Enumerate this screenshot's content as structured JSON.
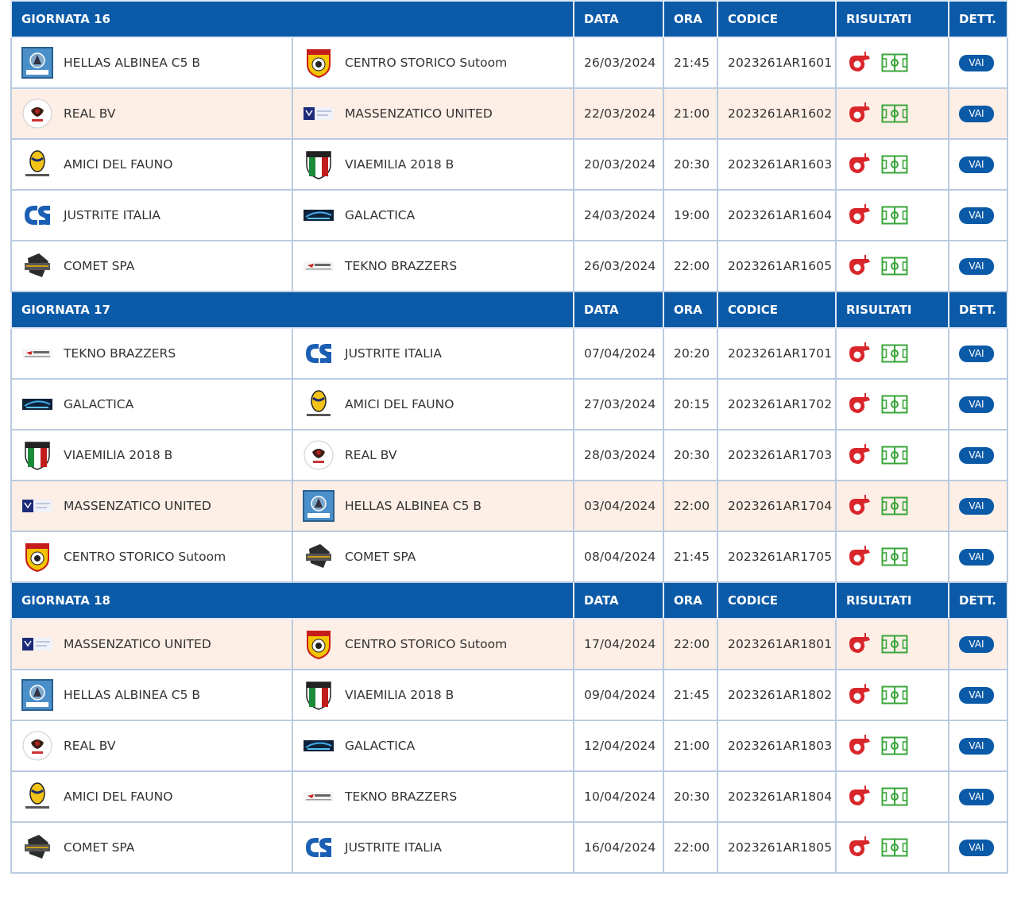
{
  "colors": {
    "header_bg": "#0b5aa8",
    "highlight_row": "#fdeee6",
    "border": "#b9cbe0",
    "field_green": "#3aa63a",
    "whistle_red": "#d8262b"
  },
  "columns": {
    "data": "DATA",
    "ora": "ORA",
    "codice": "CODICE",
    "risultati": "RISULTATI",
    "dett": "DETT."
  },
  "rounds": [
    {
      "title": "GIORNATA 16",
      "matches": [
        {
          "home": "HELLAS ALBINEA C5 B",
          "home_logo": "hellas-logo",
          "away": "CENTRO STORICO Sutoom",
          "away_logo": "centro-storico-logo",
          "date": "26/03/2024",
          "time": "21:45",
          "code": "2023261AR1601",
          "button": "VAI",
          "highlight": false
        },
        {
          "home": "REAL BV",
          "home_logo": "real-bv-logo",
          "away": "MASSENZATICO UNITED",
          "away_logo": "massenzatico-logo",
          "date": "22/03/2024",
          "time": "21:00",
          "code": "2023261AR1602",
          "button": "VAI",
          "highlight": true
        },
        {
          "home": "AMICI DEL FAUNO",
          "home_logo": "amici-fauno-logo",
          "away": "VIAEMILIA 2018 B",
          "away_logo": "viaemilia-logo",
          "date": "20/03/2024",
          "time": "20:30",
          "code": "2023261AR1603",
          "button": "VAI",
          "highlight": false
        },
        {
          "home": "JUSTRITE ITALIA",
          "home_logo": "justrite-logo",
          "away": "GALACTICA",
          "away_logo": "galactica-logo",
          "date": "24/03/2024",
          "time": "19:00",
          "code": "2023261AR1604",
          "button": "VAI",
          "highlight": false
        },
        {
          "home": "COMET SPA",
          "home_logo": "comet-logo",
          "away": "TEKNO BRAZZERS",
          "away_logo": "tekno-logo",
          "date": "26/03/2024",
          "time": "22:00",
          "code": "2023261AR1605",
          "button": "VAI",
          "highlight": false
        }
      ]
    },
    {
      "title": "GIORNATA 17",
      "matches": [
        {
          "home": "TEKNO BRAZZERS",
          "home_logo": "tekno-logo",
          "away": "JUSTRITE ITALIA",
          "away_logo": "justrite-logo",
          "date": "07/04/2024",
          "time": "20:20",
          "code": "2023261AR1701",
          "button": "VAI",
          "highlight": false
        },
        {
          "home": "GALACTICA",
          "home_logo": "galactica-logo",
          "away": "AMICI DEL FAUNO",
          "away_logo": "amici-fauno-logo",
          "date": "27/03/2024",
          "time": "20:15",
          "code": "2023261AR1702",
          "button": "VAI",
          "highlight": false
        },
        {
          "home": "VIAEMILIA 2018 B",
          "home_logo": "viaemilia-logo",
          "away": "REAL BV",
          "away_logo": "real-bv-logo",
          "date": "28/03/2024",
          "time": "20:30",
          "code": "2023261AR1703",
          "button": "VAI",
          "highlight": false
        },
        {
          "home": "MASSENZATICO UNITED",
          "home_logo": "massenzatico-logo",
          "away": "HELLAS ALBINEA C5 B",
          "away_logo": "hellas-logo",
          "date": "03/04/2024",
          "time": "22:00",
          "code": "2023261AR1704",
          "button": "VAI",
          "highlight": true
        },
        {
          "home": "CENTRO STORICO Sutoom",
          "home_logo": "centro-storico-logo",
          "away": "COMET SPA",
          "away_logo": "comet-logo",
          "date": "08/04/2024",
          "time": "21:45",
          "code": "2023261AR1705",
          "button": "VAI",
          "highlight": false
        }
      ]
    },
    {
      "title": "GIORNATA 18",
      "matches": [
        {
          "home": "MASSENZATICO UNITED",
          "home_logo": "massenzatico-logo",
          "away": "CENTRO STORICO Sutoom",
          "away_logo": "centro-storico-logo",
          "date": "17/04/2024",
          "time": "22:00",
          "code": "2023261AR1801",
          "button": "VAI",
          "highlight": true
        },
        {
          "home": "HELLAS ALBINEA C5 B",
          "home_logo": "hellas-logo",
          "away": "VIAEMILIA 2018 B",
          "away_logo": "viaemilia-logo",
          "date": "09/04/2024",
          "time": "21:45",
          "code": "2023261AR1802",
          "button": "VAI",
          "highlight": false
        },
        {
          "home": "REAL BV",
          "home_logo": "real-bv-logo",
          "away": "GALACTICA",
          "away_logo": "galactica-logo",
          "date": "12/04/2024",
          "time": "21:00",
          "code": "2023261AR1803",
          "button": "VAI",
          "highlight": false
        },
        {
          "home": "AMICI DEL FAUNO",
          "home_logo": "amici-fauno-logo",
          "away": "TEKNO BRAZZERS",
          "away_logo": "tekno-logo",
          "date": "10/04/2024",
          "time": "20:30",
          "code": "2023261AR1804",
          "button": "VAI",
          "highlight": false
        },
        {
          "home": "COMET SPA",
          "home_logo": "comet-logo",
          "away": "JUSTRITE ITALIA",
          "away_logo": "justrite-logo",
          "date": "16/04/2024",
          "time": "22:00",
          "code": "2023261AR1805",
          "button": "VAI",
          "highlight": false
        }
      ]
    }
  ]
}
